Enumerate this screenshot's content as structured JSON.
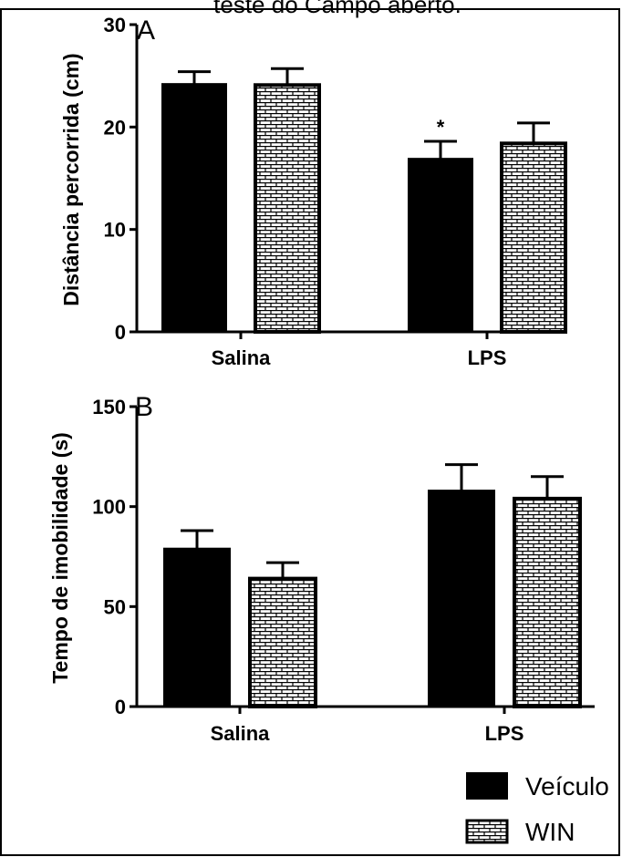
{
  "figure_title": "teste do Campo aberto.",
  "chart_data": [
    {
      "type": "bar",
      "panel_label": "A",
      "ylabel": "Distância percorrida (cm)",
      "xlabel": "",
      "ylim": [
        0,
        30
      ],
      "yticks": [
        0,
        10,
        20,
        30
      ],
      "categories": [
        "Salina",
        "LPS"
      ],
      "series": [
        {
          "name": "Veículo",
          "values": [
            24.2,
            16.9
          ],
          "errors": [
            1.2,
            1.7
          ]
        },
        {
          "name": "WIN",
          "values": [
            24.1,
            18.4
          ],
          "errors": [
            1.6,
            2.0
          ]
        }
      ],
      "annotations": [
        {
          "text": "*",
          "category": "LPS",
          "series": "Veículo"
        }
      ]
    },
    {
      "type": "bar",
      "panel_label": "B",
      "ylabel": "Tempo de imobilidade (s)",
      "xlabel": "",
      "ylim": [
        0,
        150
      ],
      "yticks": [
        0,
        50,
        100,
        150
      ],
      "categories": [
        "Salina",
        "LPS"
      ],
      "series": [
        {
          "name": "Veículo",
          "values": [
            79,
            108
          ],
          "errors": [
            9,
            13
          ]
        },
        {
          "name": "WIN",
          "values": [
            64,
            104
          ],
          "errors": [
            8,
            11
          ]
        }
      ],
      "annotations": []
    }
  ],
  "legend": {
    "position": "bottom-right",
    "items": [
      {
        "label": "Veículo",
        "fill": "solid-black"
      },
      {
        "label": "WIN",
        "fill": "brick-pattern"
      }
    ]
  },
  "colors": {
    "bar_solid": "#000000",
    "bar_pattern_bg": "#ffffff",
    "pattern_line": "#000000",
    "axis": "#000000"
  }
}
